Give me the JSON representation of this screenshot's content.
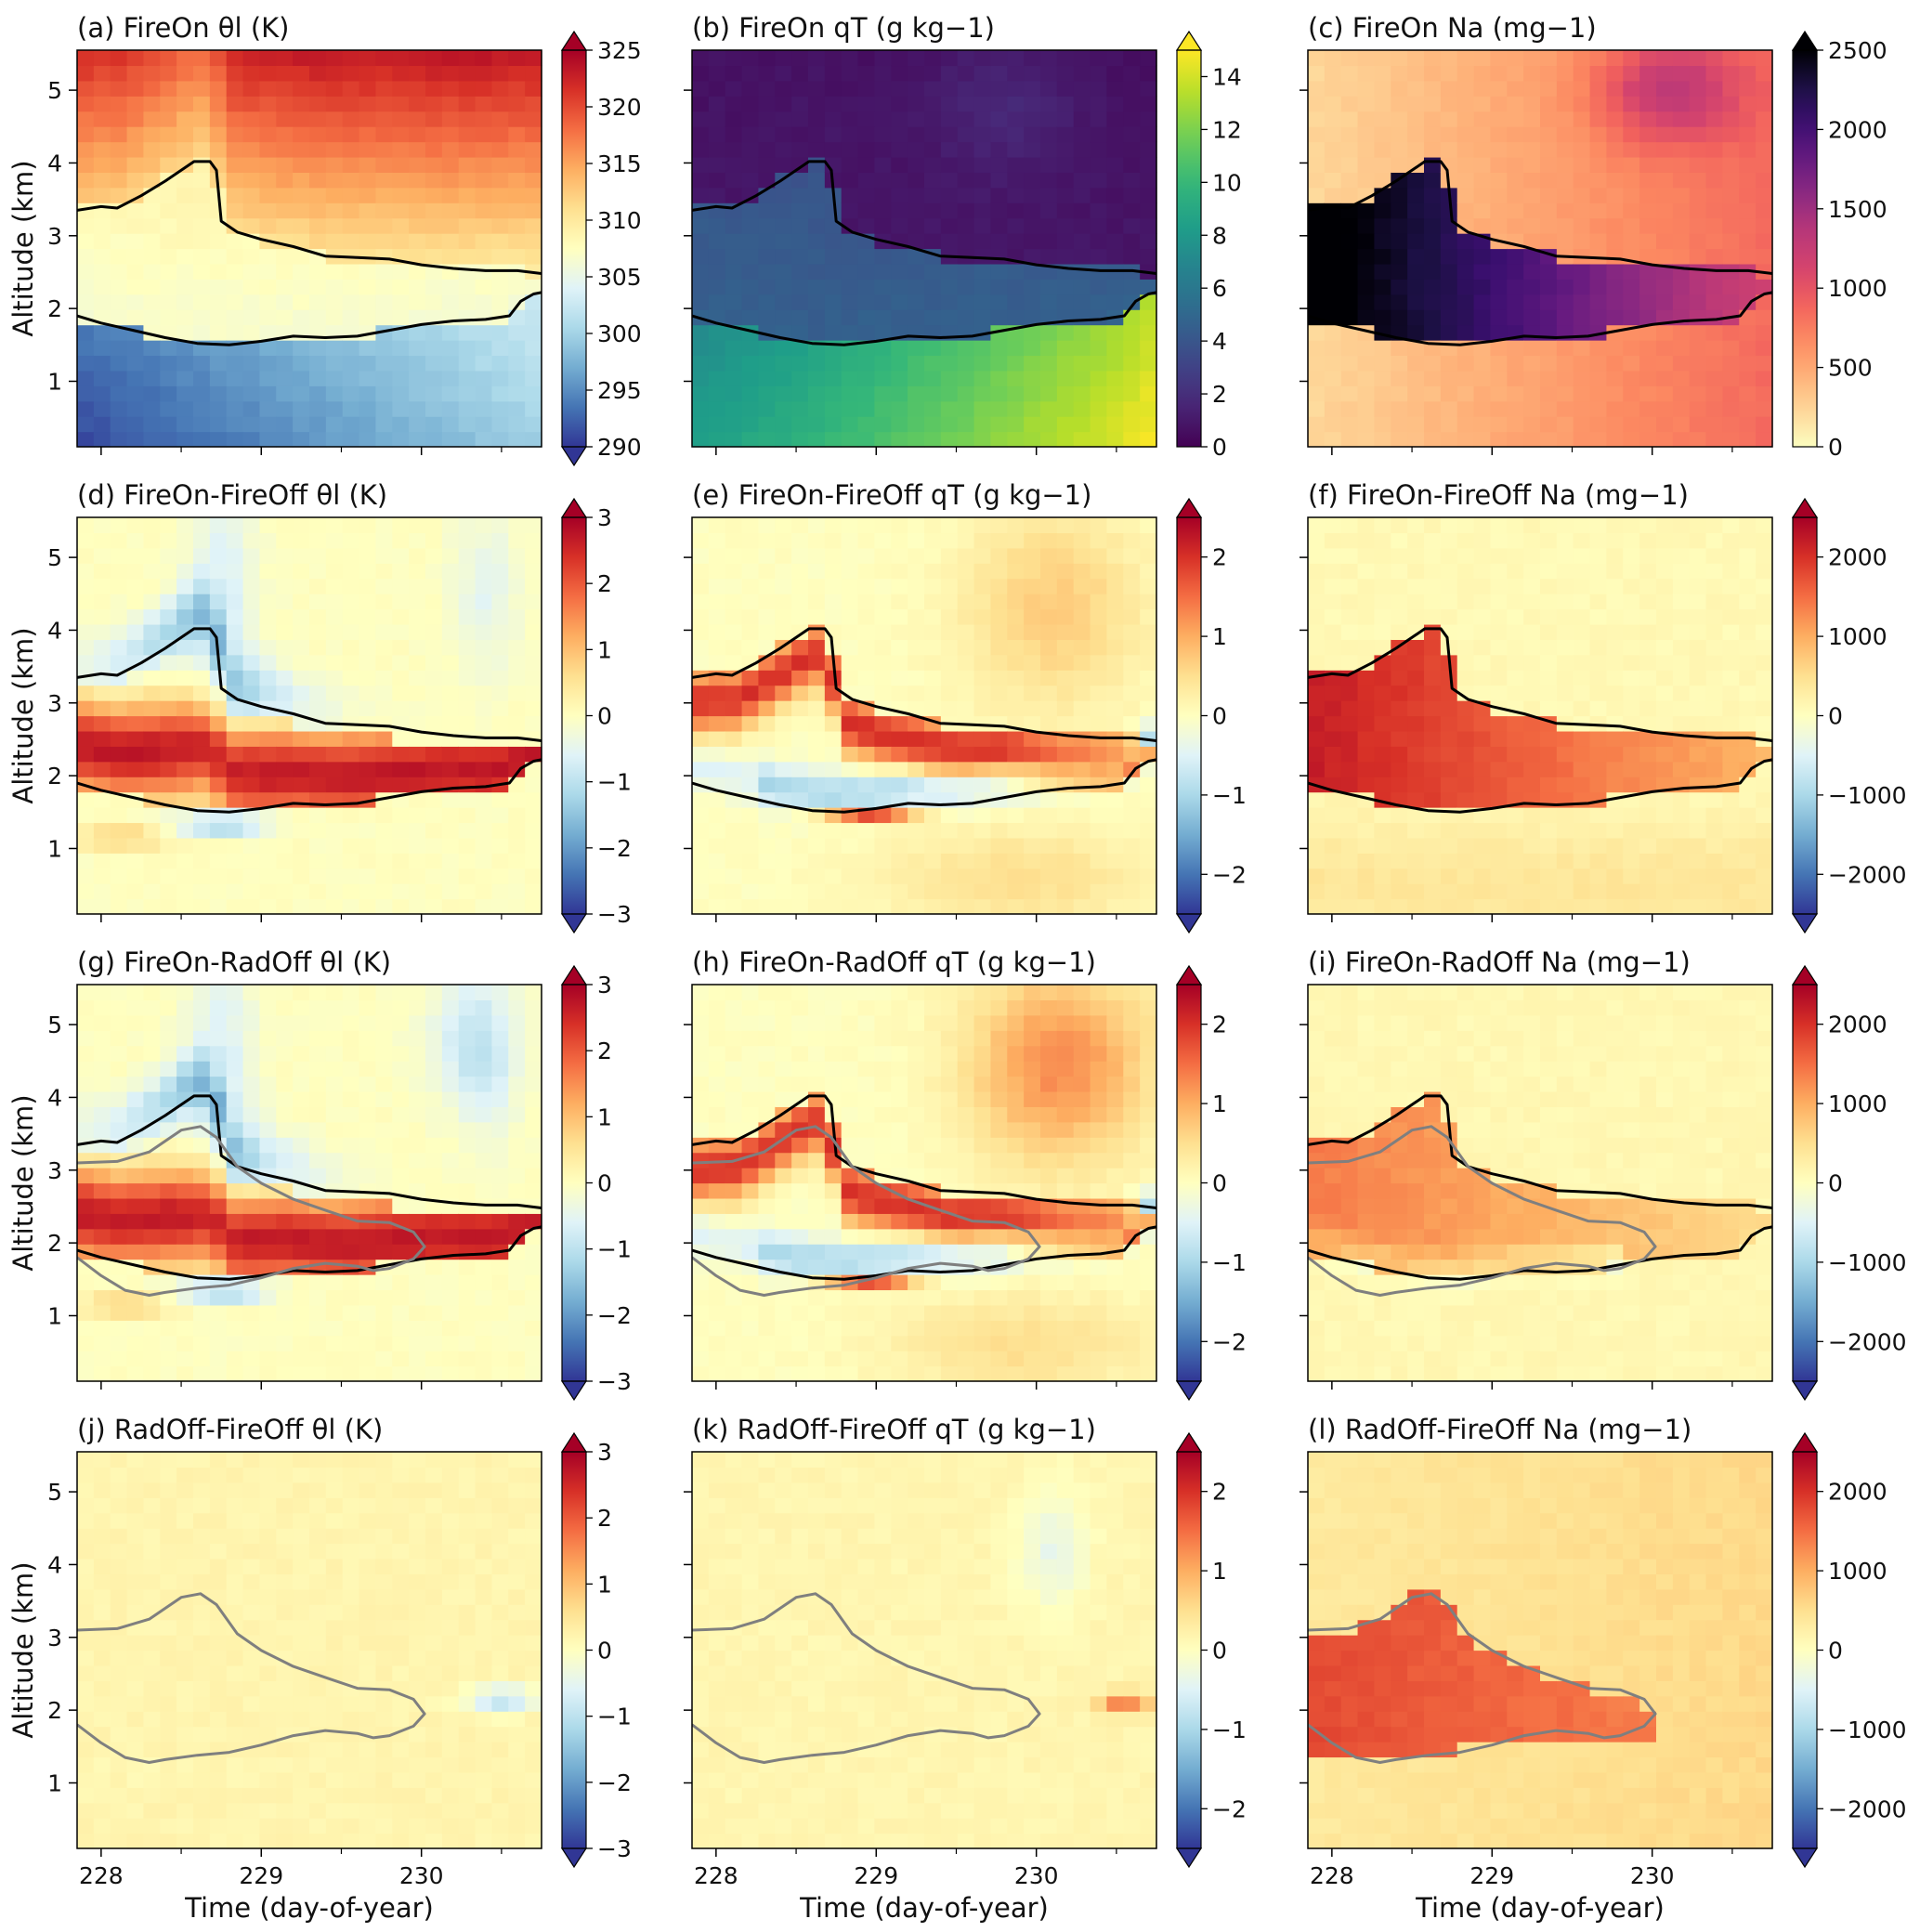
{
  "figure": {
    "y_axis_label": "Altitude (km)",
    "x_axis_label": "Time (day-of-year)"
  },
  "chart_data": {
    "type": "heatmap",
    "x_ticks": [
      228,
      229,
      230
    ],
    "x_minor_ticks": [
      228.5,
      229.5,
      230.5
    ],
    "xlim": [
      227.85,
      230.75
    ],
    "y_ticks": [
      1,
      2,
      3,
      4,
      5
    ],
    "ylim": [
      0.1,
      5.55
    ],
    "contours": {
      "cloud_top_fireon": [
        [
          227.85,
          3.35
        ],
        [
          228.0,
          3.4
        ],
        [
          228.1,
          3.38
        ],
        [
          228.25,
          3.55
        ],
        [
          228.4,
          3.75
        ],
        [
          228.5,
          3.9
        ],
        [
          228.58,
          4.02
        ],
        [
          228.68,
          4.02
        ],
        [
          228.72,
          3.9
        ],
        [
          228.75,
          3.2
        ],
        [
          228.85,
          3.05
        ],
        [
          229.0,
          2.95
        ],
        [
          229.2,
          2.85
        ],
        [
          229.4,
          2.72
        ],
        [
          229.6,
          2.7
        ],
        [
          229.8,
          2.68
        ],
        [
          230.0,
          2.6
        ],
        [
          230.2,
          2.55
        ],
        [
          230.4,
          2.52
        ],
        [
          230.6,
          2.52
        ],
        [
          230.75,
          2.48
        ]
      ],
      "cloud_base_fireon": [
        [
          227.85,
          1.9
        ],
        [
          228.0,
          1.8
        ],
        [
          228.2,
          1.7
        ],
        [
          228.4,
          1.6
        ],
        [
          228.6,
          1.52
        ],
        [
          228.8,
          1.5
        ],
        [
          229.0,
          1.55
        ],
        [
          229.2,
          1.62
        ],
        [
          229.4,
          1.6
        ],
        [
          229.6,
          1.62
        ],
        [
          229.8,
          1.7
        ],
        [
          230.0,
          1.78
        ],
        [
          230.2,
          1.83
        ],
        [
          230.4,
          1.85
        ],
        [
          230.55,
          1.9
        ],
        [
          230.62,
          2.1
        ],
        [
          230.7,
          2.2
        ],
        [
          230.75,
          2.22
        ]
      ],
      "cloud_top_comparison": [
        [
          227.85,
          3.1
        ],
        [
          228.1,
          3.12
        ],
        [
          228.3,
          3.25
        ],
        [
          228.5,
          3.55
        ],
        [
          228.62,
          3.6
        ],
        [
          228.72,
          3.45
        ],
        [
          228.85,
          3.05
        ],
        [
          229.0,
          2.82
        ],
        [
          229.2,
          2.6
        ],
        [
          229.4,
          2.45
        ],
        [
          229.6,
          2.3
        ],
        [
          229.8,
          2.28
        ],
        [
          229.95,
          2.15
        ],
        [
          230.02,
          1.95
        ],
        [
          229.95,
          1.78
        ],
        [
          229.8,
          1.65
        ],
        [
          229.7,
          1.62
        ],
        [
          229.6,
          1.68
        ],
        [
          229.4,
          1.72
        ],
        [
          229.2,
          1.65
        ],
        [
          229.0,
          1.52
        ],
        [
          228.8,
          1.42
        ],
        [
          228.6,
          1.38
        ],
        [
          228.4,
          1.32
        ],
        [
          228.3,
          1.28
        ],
        [
          228.15,
          1.35
        ],
        [
          228.0,
          1.55
        ],
        [
          227.85,
          1.8
        ]
      ]
    },
    "panels": [
      {
        "title": "(a) FireOn θl (K)",
        "field": "theta",
        "cmap": "RdYlBu_r",
        "vmin": 290,
        "vmax": 325,
        "cb_ticks": [
          290,
          295,
          300,
          305,
          310,
          315,
          320,
          325
        ],
        "extend": "both",
        "contours": [
          "cloud_top_fireon",
          "cloud_base_fireon"
        ]
      },
      {
        "title": "(b) FireOn qT (g kg−1)",
        "field": "qt",
        "cmap": "viridis",
        "vmin": 0,
        "vmax": 15,
        "cb_ticks": [
          0,
          2,
          4,
          6,
          8,
          10,
          12,
          14
        ],
        "extend": "max",
        "contours": [
          "cloud_top_fireon",
          "cloud_base_fireon"
        ]
      },
      {
        "title": "(c) FireOn Na (mg−1)",
        "field": "na",
        "cmap": "magma_r",
        "vmin": 0,
        "vmax": 2500,
        "cb_ticks": [
          0,
          500,
          1000,
          1500,
          2000,
          2500
        ],
        "extend": "max",
        "contours": [
          "cloud_top_fireon",
          "cloud_base_fireon"
        ]
      },
      {
        "title": "(d) FireOn-FireOff θl (K)",
        "field": "dtheta_ff",
        "cmap": "RdYlBu_r",
        "vmin": -3,
        "vmax": 3,
        "cb_ticks": [
          -3,
          -2,
          -1,
          0,
          1,
          2,
          3
        ],
        "extend": "both",
        "contours": [
          "cloud_top_fireon",
          "cloud_base_fireon"
        ]
      },
      {
        "title": "(e) FireOn-FireOff qT (g kg−1)",
        "field": "dqt_ff",
        "cmap": "RdYlBu_r",
        "vmin": -2.5,
        "vmax": 2.5,
        "cb_ticks": [
          -2,
          -1,
          0,
          1,
          2
        ],
        "extend": "both",
        "contours": [
          "cloud_top_fireon",
          "cloud_base_fireon"
        ]
      },
      {
        "title": "(f) FireOn-FireOff Na (mg−1)",
        "field": "dna_ff",
        "cmap": "RdYlBu_r",
        "vmin": -2500,
        "vmax": 2500,
        "cb_ticks": [
          -2000,
          -1000,
          0,
          1000,
          2000
        ],
        "extend": "both",
        "contours": [
          "cloud_top_fireon",
          "cloud_base_fireon"
        ]
      },
      {
        "title": "(g) FireOn-RadOff θl (K)",
        "field": "dtheta_ro",
        "cmap": "RdYlBu_r",
        "vmin": -3,
        "vmax": 3,
        "cb_ticks": [
          -3,
          -2,
          -1,
          0,
          1,
          2,
          3
        ],
        "extend": "both",
        "contours": [
          "cloud_top_fireon",
          "cloud_base_fireon",
          "cloud_top_comparison"
        ]
      },
      {
        "title": "(h) FireOn-RadOff qT (g kg−1)",
        "field": "dqt_ro",
        "cmap": "RdYlBu_r",
        "vmin": -2.5,
        "vmax": 2.5,
        "cb_ticks": [
          -2,
          -1,
          0,
          1,
          2
        ],
        "extend": "both",
        "contours": [
          "cloud_top_fireon",
          "cloud_base_fireon",
          "cloud_top_comparison"
        ]
      },
      {
        "title": "(i) FireOn-RadOff Na (mg−1)",
        "field": "dna_ro",
        "cmap": "RdYlBu_r",
        "vmin": -2500,
        "vmax": 2500,
        "cb_ticks": [
          -2000,
          -1000,
          0,
          1000,
          2000
        ],
        "extend": "both",
        "contours": [
          "cloud_top_fireon",
          "cloud_base_fireon",
          "cloud_top_comparison"
        ]
      },
      {
        "title": "(j) RadOff-FireOff θl (K)",
        "field": "dtheta_rf",
        "cmap": "RdYlBu_r",
        "vmin": -3,
        "vmax": 3,
        "cb_ticks": [
          -3,
          -2,
          -1,
          0,
          1,
          2,
          3
        ],
        "extend": "both",
        "contours": [
          "cloud_top_comparison"
        ]
      },
      {
        "title": "(k) RadOff-FireOff qT (g kg−1)",
        "field": "dqt_rf",
        "cmap": "RdYlBu_r",
        "vmin": -2.5,
        "vmax": 2.5,
        "cb_ticks": [
          -2,
          -1,
          0,
          1,
          2
        ],
        "extend": "both",
        "contours": [
          "cloud_top_comparison"
        ]
      },
      {
        "title": "(l) RadOff-FireOff Na (mg−1)",
        "field": "dna_rf",
        "cmap": "RdYlBu_r",
        "vmin": -2500,
        "vmax": 2500,
        "cb_ticks": [
          -2000,
          -1000,
          0,
          1000,
          2000
        ],
        "extend": "both",
        "contours": [
          "cloud_top_comparison"
        ]
      }
    ]
  }
}
